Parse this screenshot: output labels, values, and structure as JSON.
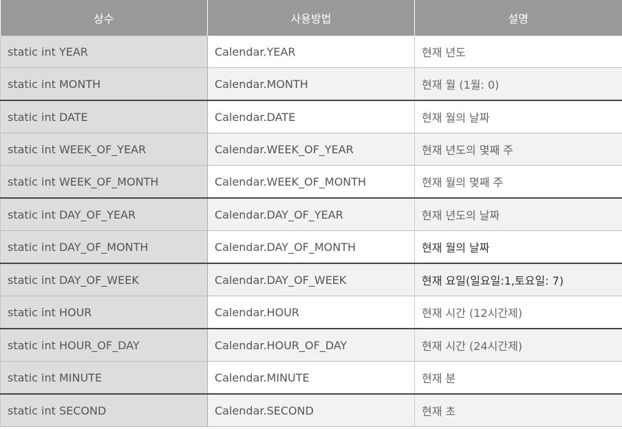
{
  "table": {
    "headers": [
      "상수",
      "사용방법",
      "설명"
    ],
    "rows": [
      [
        "static int YEAR",
        "Calendar.YEAR",
        "현재 년도"
      ],
      [
        "static int MONTH",
        "Calendar.MONTH",
        "현재 월 (1월: 0)"
      ],
      [
        "static int DATE",
        "Calendar.DATE",
        "현재 월의 날짜"
      ],
      [
        "static int WEEK_OF_YEAR",
        "Calendar.WEEK_OF_YEAR",
        "현재 년도의 몇째 주"
      ],
      [
        "static int WEEK_OF_MONTH",
        "Calendar.WEEK_OF_MONTH",
        "현재 월의 몇째 주"
      ],
      [
        "static int DAY_OF_YEAR",
        "Calendar.DAY_OF_YEAR",
        "현재 년도의 날짜"
      ],
      [
        "static int DAY_OF_MONTH",
        "Calendar.DAY_OF_MONTH",
        "현재 월의 날짜"
      ],
      [
        "static int DAY_OF_WEEK",
        "Calendar.DAY_OF_WEEK",
        "현재 요일(일요일:1,토요일: 7)"
      ],
      [
        "static int HOUR",
        "Calendar.HOUR",
        "현재 시간 (12시간제)"
      ],
      [
        "static int HOUR_OF_DAY",
        "Calendar.HOUR_OF_DAY",
        "현재 시간 (24시간제)"
      ],
      [
        "static int MINUTE",
        "Calendar.MINUTE",
        "현재 분"
      ],
      [
        "static int SECOND",
        "Calendar.SECOND",
        "현재 초"
      ]
    ]
  }
}
